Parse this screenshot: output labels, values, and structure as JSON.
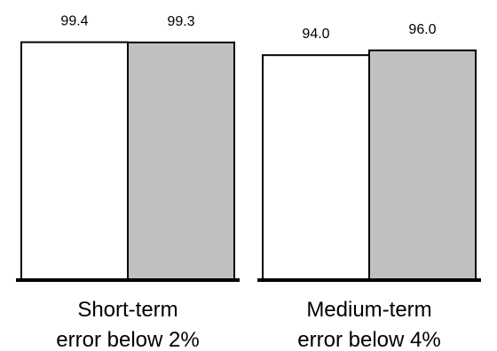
{
  "chart_data": {
    "type": "bar",
    "title": "",
    "xlabel": "",
    "ylabel": "",
    "ylim": [
      0,
      100
    ],
    "grid": false,
    "groups": [
      {
        "label_lines": [
          "Short-term",
          "error below 2%"
        ],
        "values": [
          99.4,
          99.3
        ],
        "value_labels": [
          "99.4",
          "99.3"
        ],
        "colors": [
          "#ffffff",
          "#c0c0c0"
        ]
      },
      {
        "label_lines": [
          "Medium-term",
          "error below 4%"
        ],
        "values": [
          94.0,
          96.0
        ],
        "value_labels": [
          "94.0",
          "96.0"
        ],
        "colors": [
          "#ffffff",
          "#c0c0c0"
        ]
      }
    ]
  }
}
